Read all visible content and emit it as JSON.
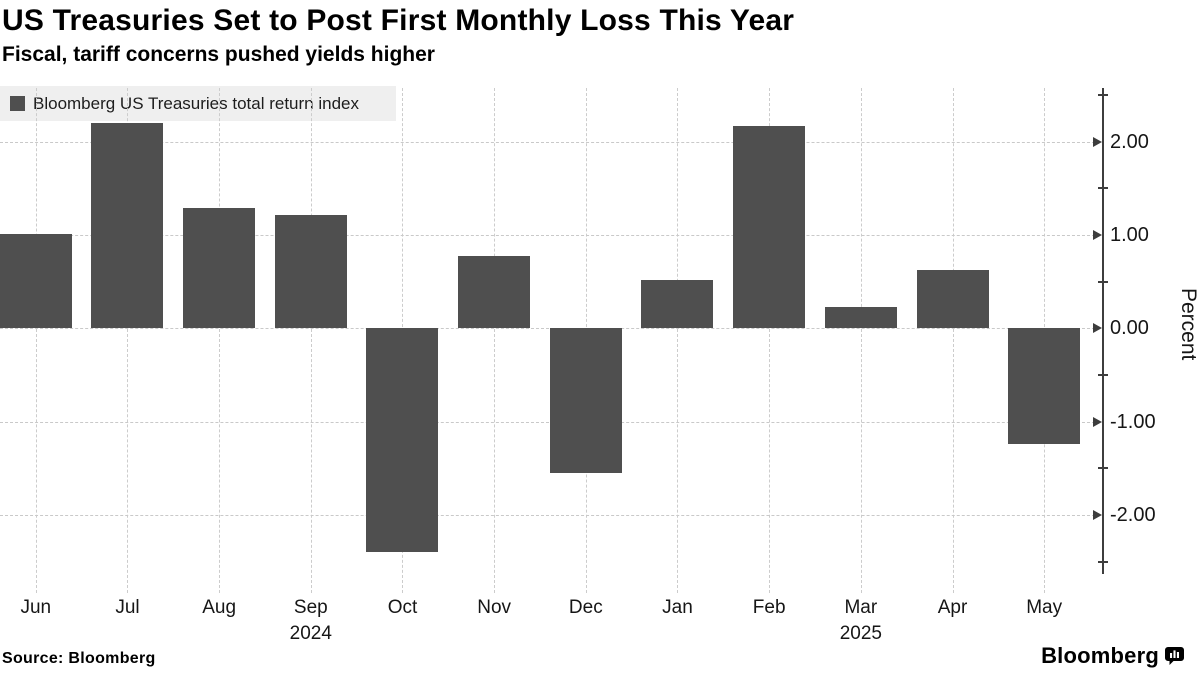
{
  "header": {
    "title": "US Treasuries Set to Post First Monthly Loss This Year",
    "subtitle": "Fiscal, tariff concerns pushed yields higher"
  },
  "legend": {
    "label": "Bloomberg US Treasuries total return index",
    "swatch_color": "#4f4f4f"
  },
  "chart_data": {
    "type": "bar",
    "title": "US Treasuries Set to Post First Monthly Loss This Year",
    "subtitle": "Fiscal, tariff concerns pushed yields higher",
    "series_name": "Bloomberg US Treasuries total return index",
    "categories": [
      "Jun",
      "Jul",
      "Aug",
      "Sep",
      "Oct",
      "Nov",
      "Dec",
      "Jan",
      "Feb",
      "Mar",
      "Apr",
      "May"
    ],
    "values": [
      1.01,
      2.2,
      1.29,
      1.21,
      -2.4,
      0.78,
      -1.55,
      0.52,
      2.17,
      0.23,
      0.62,
      -1.24
    ],
    "year_labels": [
      {
        "text": "2024",
        "month_index": 3
      },
      {
        "text": "2025",
        "month_index": 9
      }
    ],
    "xlabel": "",
    "ylabel": "Percent",
    "ylim": [
      -2.75,
      2.55
    ],
    "y_major_ticks": [
      2.0,
      1.0,
      0.0,
      -1.0,
      -2.0
    ],
    "y_major_tick_labels": [
      "2.00",
      "1.00",
      "0.00",
      "-1.00",
      "-2.00"
    ],
    "y_minor_ticks": [
      2.5,
      1.5,
      0.5,
      -0.5,
      -1.5,
      -2.5
    ],
    "grid": "dashed, horizontal at major ticks and vertical at each month",
    "legend_position": "top-left",
    "axis_side": "right",
    "bar_color": "#4f4f4f"
  },
  "footer": {
    "source": "Source: Bloomberg",
    "brand": "Bloomberg"
  }
}
